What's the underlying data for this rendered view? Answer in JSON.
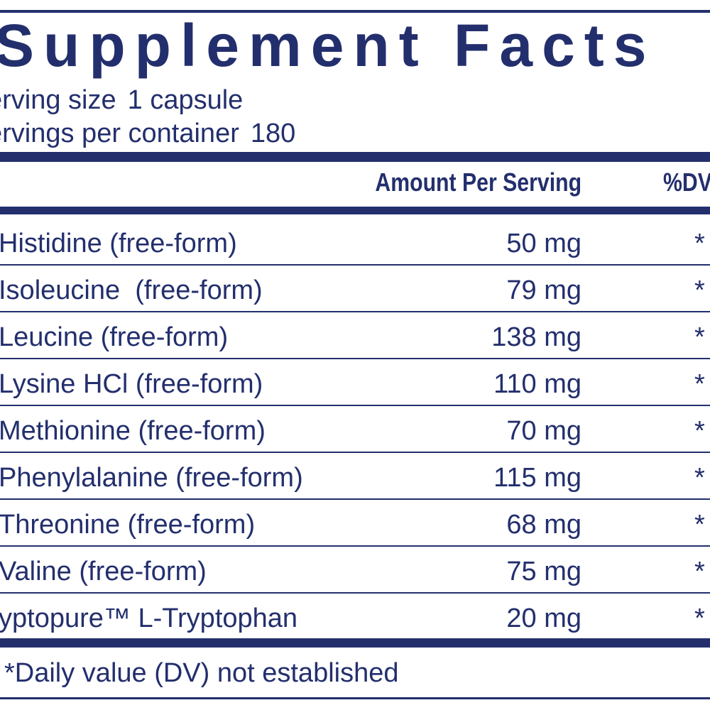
{
  "panel": {
    "title": "Supplement Facts",
    "serving_size_label": "erving size",
    "serving_size_value": "1 capsule",
    "servings_label": "ervings per container",
    "servings_value": "180"
  },
  "table": {
    "header_amount": "Amount Per Serving",
    "header_dv": "%DV",
    "rows": [
      {
        "name": "Histidine (free-form)",
        "amount": "50 mg",
        "dv": "*"
      },
      {
        "name": "Isoleucine  (free-form)",
        "amount": "79 mg",
        "dv": "*"
      },
      {
        "name": "Leucine (free-form)",
        "amount": "138 mg",
        "dv": "*"
      },
      {
        "name": "Lysine HCl (free-form)",
        "amount": "110 mg",
        "dv": "*"
      },
      {
        "name": "Methionine (free-form)",
        "amount": "70 mg",
        "dv": "*"
      },
      {
        "name": "Phenylalanine (free-form)",
        "amount": "115 mg",
        "dv": "*"
      },
      {
        "name": "Threonine (free-form)",
        "amount": "68 mg",
        "dv": "*"
      },
      {
        "name": "Valine (free-form)",
        "amount": "75 mg",
        "dv": "*"
      },
      {
        "name": "yptopure™ L-Tryptophan",
        "amount": "20 mg",
        "dv": "*"
      }
    ]
  },
  "footnote": "*Daily value (DV) not established",
  "colors": {
    "ink": "#232f6d",
    "background": "#ffffff"
  }
}
